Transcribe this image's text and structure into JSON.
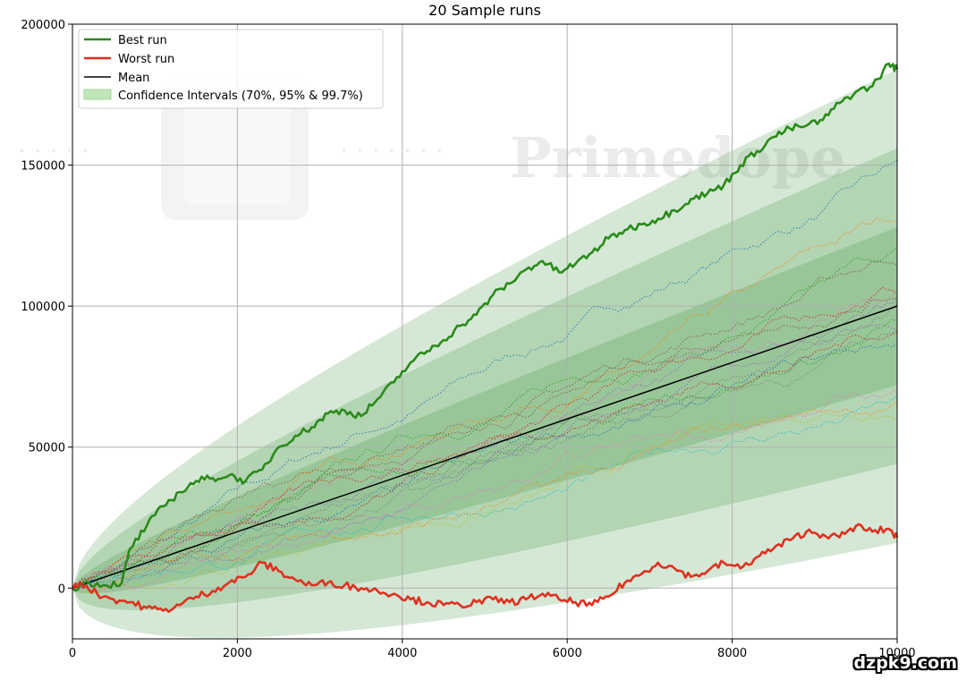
{
  "chart_data": {
    "type": "line",
    "title": "20 Sample runs",
    "xlabel": "",
    "ylabel": "",
    "xlim": [
      0,
      10000
    ],
    "ylim": [
      -18000,
      200000
    ],
    "x_ticks": [
      0,
      2000,
      4000,
      6000,
      8000,
      10000
    ],
    "x_tick_labels": [
      "0",
      "2000",
      "4000",
      "6000",
      "8000",
      "10000"
    ],
    "y_ticks": [
      0,
      50000,
      100000,
      150000,
      200000
    ],
    "y_tick_labels": [
      "0",
      "50000",
      "100000",
      "150000",
      "200000"
    ],
    "grid": true,
    "legend_position": "top-left",
    "legend": [
      {
        "label": "Best run",
        "color": "#2a8a1a",
        "kind": "line"
      },
      {
        "label": "Worst run",
        "color": "#e03020",
        "kind": "line"
      },
      {
        "label": "Mean",
        "color": "#000000",
        "kind": "line"
      },
      {
        "label": "Confidence Intervals (70%, 95% & 99.7%)",
        "color": "#8fcf84",
        "kind": "patch"
      }
    ],
    "mean": {
      "slope": 10,
      "x": [
        0,
        10000
      ],
      "y": [
        0,
        100000
      ]
    },
    "confidence_bands": [
      {
        "name": "99.7%",
        "k": 3,
        "sigma_per_sqrt_x": 280,
        "fill": "#2e8b2e",
        "opacity": 0.2
      },
      {
        "name": "95%",
        "k": 2,
        "sigma_per_sqrt_x": 280,
        "fill": "#2e8b2e",
        "opacity": 0.2
      },
      {
        "name": "70%",
        "k": 1,
        "sigma_per_sqrt_x": 280,
        "fill": "#2e8b2e",
        "opacity": 0.2
      }
    ],
    "series": [
      {
        "name": "Best run",
        "color": "#2a8a1a",
        "x": [
          0,
          200,
          400,
          600,
          700,
          900,
          1100,
          1300,
          1500,
          1700,
          1900,
          2100,
          2300,
          2500,
          2700,
          2900,
          3100,
          3300,
          3500,
          3700,
          3900,
          4100,
          4300,
          4500,
          4700,
          4900,
          5100,
          5300,
          5500,
          5700,
          5900,
          6100,
          6300,
          6500,
          6700,
          6900,
          7100,
          7300,
          7500,
          7700,
          7900,
          8100,
          8300,
          8500,
          8700,
          8900,
          9100,
          9300,
          9500,
          9700,
          9900,
          10000
        ],
        "y": [
          0,
          2000,
          1000,
          2000,
          14000,
          22000,
          29000,
          34000,
          38000,
          39000,
          40000,
          38000,
          42000,
          50000,
          54000,
          57000,
          62000,
          63000,
          61000,
          67000,
          73000,
          80000,
          84000,
          88000,
          93000,
          97000,
          104000,
          108000,
          113000,
          116000,
          112000,
          115000,
          119000,
          124000,
          127000,
          129000,
          131000,
          134000,
          138000,
          140000,
          143000,
          150000,
          155000,
          160000,
          163000,
          164000,
          166000,
          172000,
          176000,
          178000,
          186000,
          184000
        ]
      },
      {
        "name": "Worst run",
        "color": "#e03020",
        "x": [
          0,
          100,
          300,
          500,
          700,
          900,
          1100,
          1300,
          1500,
          1700,
          1900,
          2100,
          2300,
          2500,
          2700,
          2900,
          3100,
          3300,
          3500,
          3700,
          3900,
          4100,
          4300,
          4500,
          4700,
          4900,
          5100,
          5300,
          5500,
          5700,
          5900,
          6100,
          6300,
          6500,
          6700,
          6900,
          7100,
          7300,
          7500,
          7700,
          7900,
          8100,
          8300,
          8500,
          8700,
          8900,
          9100,
          9300,
          9500,
          9700,
          9900,
          10000
        ],
        "y": [
          0,
          2000,
          -2000,
          -4000,
          -5000,
          -7000,
          -8000,
          -6000,
          -3000,
          -1000,
          2000,
          4000,
          9000,
          6000,
          3000,
          1000,
          2000,
          1000,
          0,
          -1000,
          -2000,
          -4000,
          -5000,
          -6000,
          -6000,
          -5000,
          -4000,
          -5000,
          -4000,
          -2000,
          -4000,
          -5000,
          -6000,
          -3000,
          2000,
          5000,
          9000,
          7000,
          4000,
          6000,
          9000,
          7000,
          11000,
          14000,
          17000,
          20000,
          19000,
          18000,
          22000,
          20000,
          21000,
          18000
        ]
      }
    ]
  }
}
